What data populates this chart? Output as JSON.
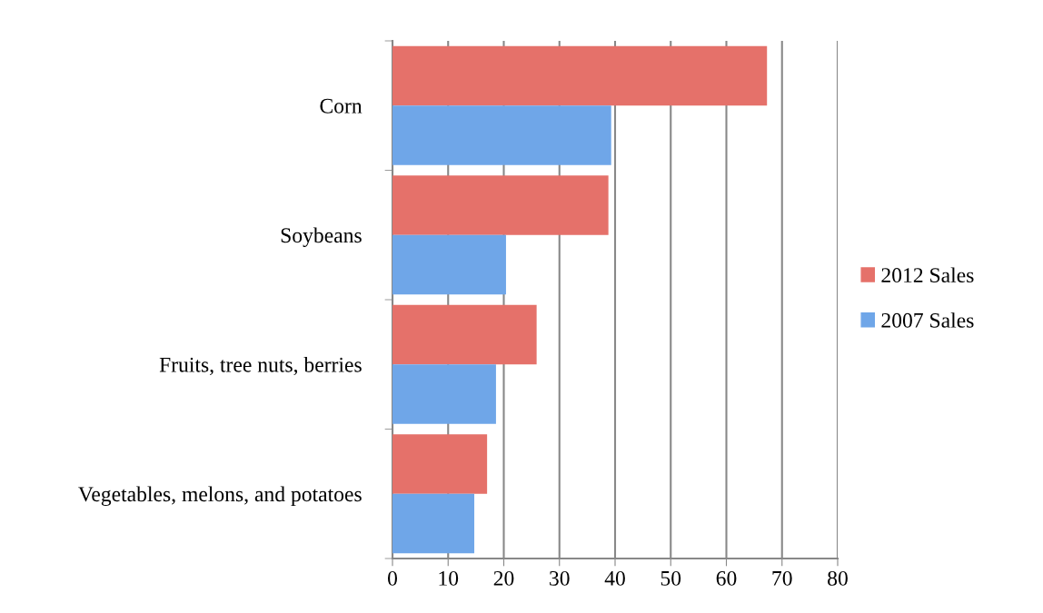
{
  "chart_data": {
    "type": "bar",
    "orientation": "horizontal",
    "categories": [
      "Corn",
      "Soybeans",
      "Fruits, tree nuts, berries",
      "Vegetables, melons, and potatoes"
    ],
    "series": [
      {
        "name": "2012 Sales",
        "color": "#e5716a",
        "values": [
          67.3,
          38.8,
          25.9,
          17.0
        ]
      },
      {
        "name": "2007 Sales",
        "color": "#6fa6e8",
        "values": [
          39.3,
          20.4,
          18.6,
          14.7
        ]
      }
    ],
    "xlim": [
      0,
      80
    ],
    "xticks": [
      0,
      10,
      20,
      30,
      40,
      50,
      60,
      70,
      80
    ],
    "grid": "x",
    "legend": "right"
  }
}
